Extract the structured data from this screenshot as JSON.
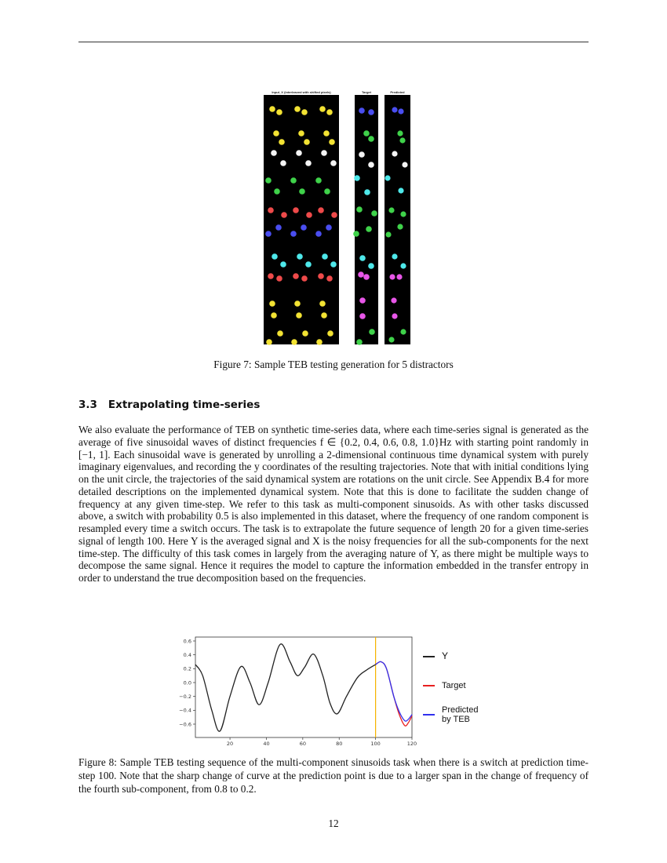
{
  "figure7": {
    "panel_titles": [
      "Input_X (interleaved with shifted pixels)",
      "Target",
      "Predicted"
    ],
    "caption": "Figure 7: Sample TEB testing generation for 5 distractors",
    "dot_colors": {
      "yellow": "#f2e233",
      "white": "#f4f4f4",
      "green": "#3fd24a",
      "red": "#ee4a4a",
      "blue": "#4a4ef0",
      "cyan": "#4ee8ea",
      "magenta": "#e856e8"
    }
  },
  "section": {
    "number": "3.3",
    "title": "Extrapolating time-series"
  },
  "paragraph": "We also evaluate the performance of TEB on synthetic time-series data, where each time-series signal is generated as the average of five sinusoidal waves of distinct frequencies f ∈ {0.2, 0.4, 0.6, 0.8, 1.0}Hz with starting point randomly in [−1, 1]. Each sinusoidal wave is generated by unrolling a 2-dimensional continuous time dynamical system with purely imaginary eigenvalues, and recording the y coordinates of the resulting trajectories. Note that with initial conditions lying on the unit circle, the trajectories of the said dynamical system are rotations on the unit circle. See Appendix B.4 for more detailed descriptions on the implemented dynamical system. Note that this is done to facilitate the sudden change of frequency at any given time-step. We refer to this task as multi-component sinusoids. As with other tasks discussed above, a switch with probability 0.5 is also implemented in this dataset, where the frequency of one random component is resampled every time a switch occurs. The task is to extrapolate the future sequence of length 20 for a given time-series signal of length 100. Here Y is the averaged signal and X is the noisy frequencies for all the sub-components for the next time-step. The difficulty of this task comes in largely from the averaging nature of Y, as there might be multiple ways to decompose the same signal. Hence it requires the model to capture the information embedded in the transfer entropy in order to understand the true decomposition based on the frequencies.",
  "chart_data": {
    "type": "line",
    "xlim": [
      1,
      120
    ],
    "ylim": [
      -0.75,
      0.62
    ],
    "x_ticks": [
      "20",
      "40",
      "60",
      "80",
      "100",
      "120"
    ],
    "y_ticks": [
      "0.6",
      "0.4",
      "0.2",
      "0.0",
      "−0.2",
      "−0.4",
      "−0.6"
    ],
    "x_tick_values": [
      20,
      40,
      60,
      80,
      100,
      120
    ],
    "y_tick_values": [
      0.6,
      0.4,
      0.2,
      0.0,
      -0.2,
      -0.4,
      -0.6
    ],
    "vline": {
      "x": 100,
      "color": "#f5b400"
    },
    "legend_placement": "right, outside",
    "series": [
      {
        "name": "Y",
        "color": "#222222",
        "points": [
          [
            1,
            0.26
          ],
          [
            5,
            0.1
          ],
          [
            10,
            -0.4
          ],
          [
            14.5,
            -0.7
          ],
          [
            20,
            -0.2
          ],
          [
            26,
            0.23
          ],
          [
            31,
            0.0
          ],
          [
            36,
            -0.32
          ],
          [
            41,
            0.0
          ],
          [
            47.5,
            0.55
          ],
          [
            53,
            0.3
          ],
          [
            57,
            0.1
          ],
          [
            61,
            0.22
          ],
          [
            66,
            0.41
          ],
          [
            71,
            0.1
          ],
          [
            75,
            -0.3
          ],
          [
            79,
            -0.45
          ],
          [
            84,
            -0.2
          ],
          [
            90,
            0.07
          ],
          [
            95,
            0.18
          ],
          [
            100,
            0.26
          ]
        ]
      },
      {
        "name": "Target",
        "color": "#e82020",
        "points": [
          [
            100,
            0.26
          ],
          [
            103,
            0.3
          ],
          [
            106,
            0.2
          ],
          [
            110,
            -0.2
          ],
          [
            113,
            -0.46
          ],
          [
            116,
            -0.62
          ],
          [
            118,
            -0.58
          ],
          [
            120,
            -0.48
          ]
        ]
      },
      {
        "name": "Predicted by TEB",
        "color": "#3030ee",
        "points": [
          [
            100,
            0.26
          ],
          [
            103,
            0.3
          ],
          [
            106,
            0.2
          ],
          [
            110,
            -0.2
          ],
          [
            113,
            -0.42
          ],
          [
            116,
            -0.55
          ],
          [
            118,
            -0.53
          ],
          [
            120,
            -0.46
          ]
        ]
      }
    ],
    "legend": [
      "Y",
      "Target",
      "Predicted\nby TEB"
    ]
  },
  "figure8": {
    "caption": "Figure 8: Sample TEB testing sequence of the multi-component sinusoids task when there is a switch at prediction time-step 100. Note that the sharp change of curve at the prediction point is due to a larger span in the change of frequency of the fourth sub-component, from 0.8 to 0.2."
  },
  "page_number": "12"
}
